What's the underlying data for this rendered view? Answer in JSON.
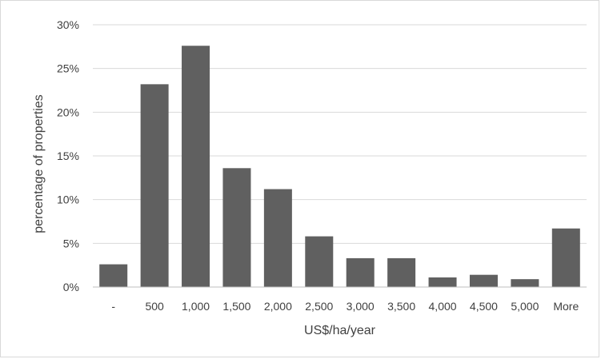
{
  "chart_data": {
    "type": "bar",
    "title": "",
    "xlabel": "US$/ha/year",
    "ylabel": "percentage of properties",
    "categories": [
      "-",
      "500",
      "1,000",
      "1,500",
      "2,000",
      "2,500",
      "3,000",
      "3,500",
      "4,000",
      "4,500",
      "5,000",
      "More"
    ],
    "values": [
      2.6,
      23.2,
      27.6,
      13.6,
      11.2,
      5.8,
      3.3,
      3.3,
      1.1,
      1.4,
      0.9,
      6.7
    ],
    "ylim": [
      0,
      30
    ],
    "yticks": [
      0,
      5,
      10,
      15,
      20,
      25,
      30
    ],
    "ytick_labels": [
      "0%",
      "5%",
      "10%",
      "15%",
      "20%",
      "25%",
      "30%"
    ],
    "grid": true,
    "legend": false,
    "colors": {
      "bar": "#606060",
      "grid": "#d9d9d9",
      "axis": "#bfbfbf",
      "text": "#404040"
    }
  }
}
